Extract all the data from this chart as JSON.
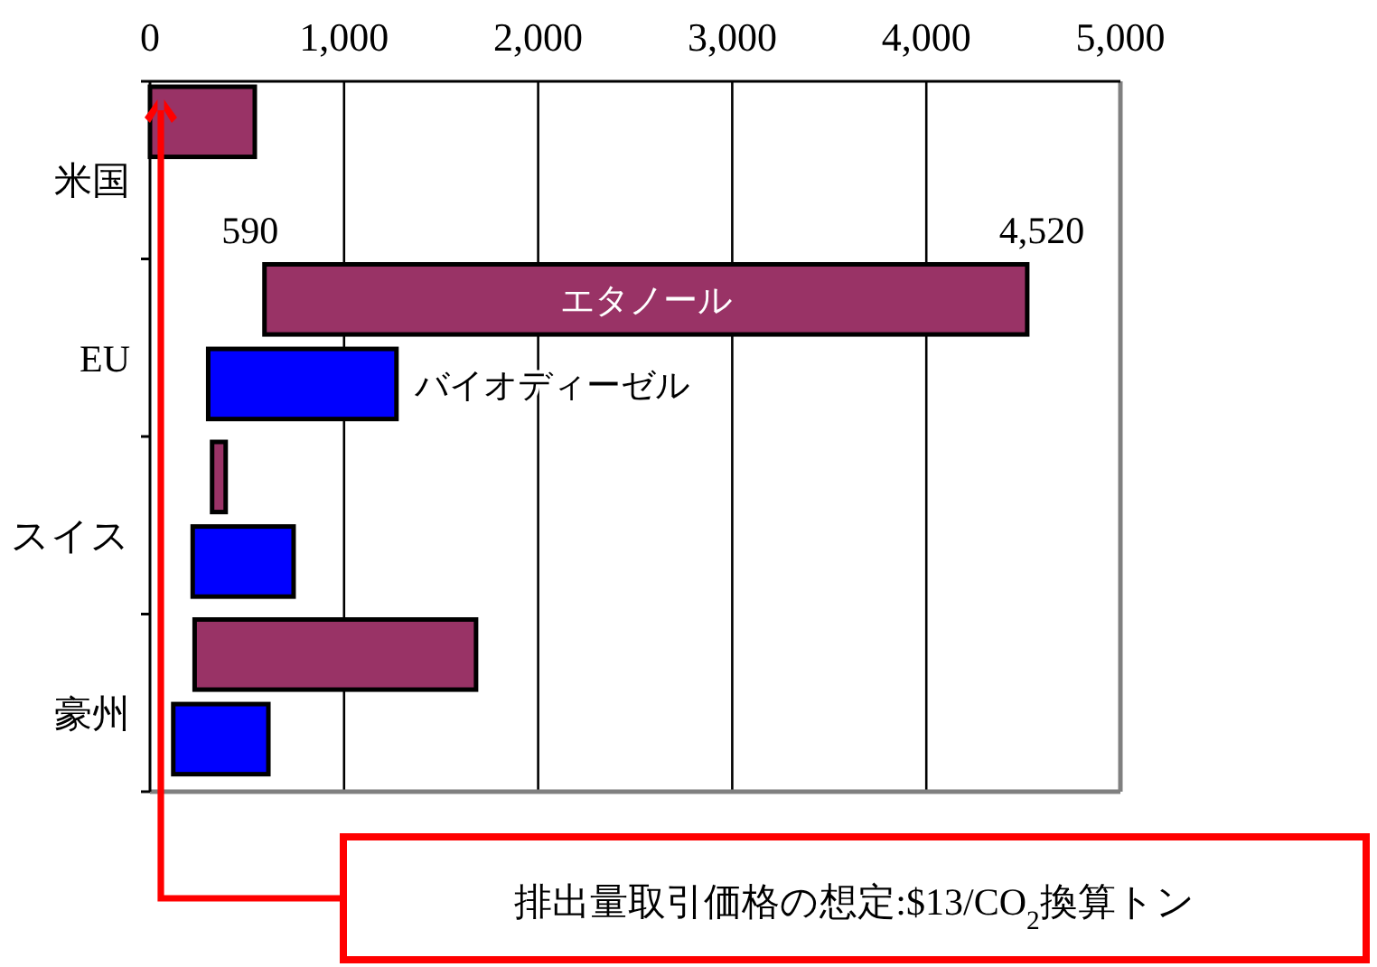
{
  "chart_data": {
    "type": "bar",
    "orientation": "horizontal",
    "categories": [
      "米国",
      "EU",
      "スイス",
      "豪州"
    ],
    "series": [
      {
        "name": "エタノール",
        "color": "#993366",
        "base": [
          0,
          590,
          320,
          230
        ],
        "values": [
          540,
          3930,
          70,
          1450
        ]
      },
      {
        "name": "バイオディーゼル",
        "color": "#0000ff",
        "base": [
          null,
          300,
          220,
          120
        ],
        "values": [
          null,
          970,
          520,
          490
        ]
      }
    ],
    "xlim": [
      0,
      5000
    ],
    "xticks": [
      0,
      {
        "value": 1000,
        "label": "1,000"
      },
      {
        "value": 2000,
        "label": "2,000"
      },
      {
        "value": 3000,
        "label": "3,000"
      },
      {
        "value": 4000,
        "label": "4,000"
      },
      {
        "value": 5000,
        "label": "5,000"
      }
    ],
    "grid": "x",
    "legend": false,
    "annotations": [
      "590",
      "4,520",
      "排出量取引価格の想定:$13/CO$_{2}$換算トン"
    ]
  }
}
